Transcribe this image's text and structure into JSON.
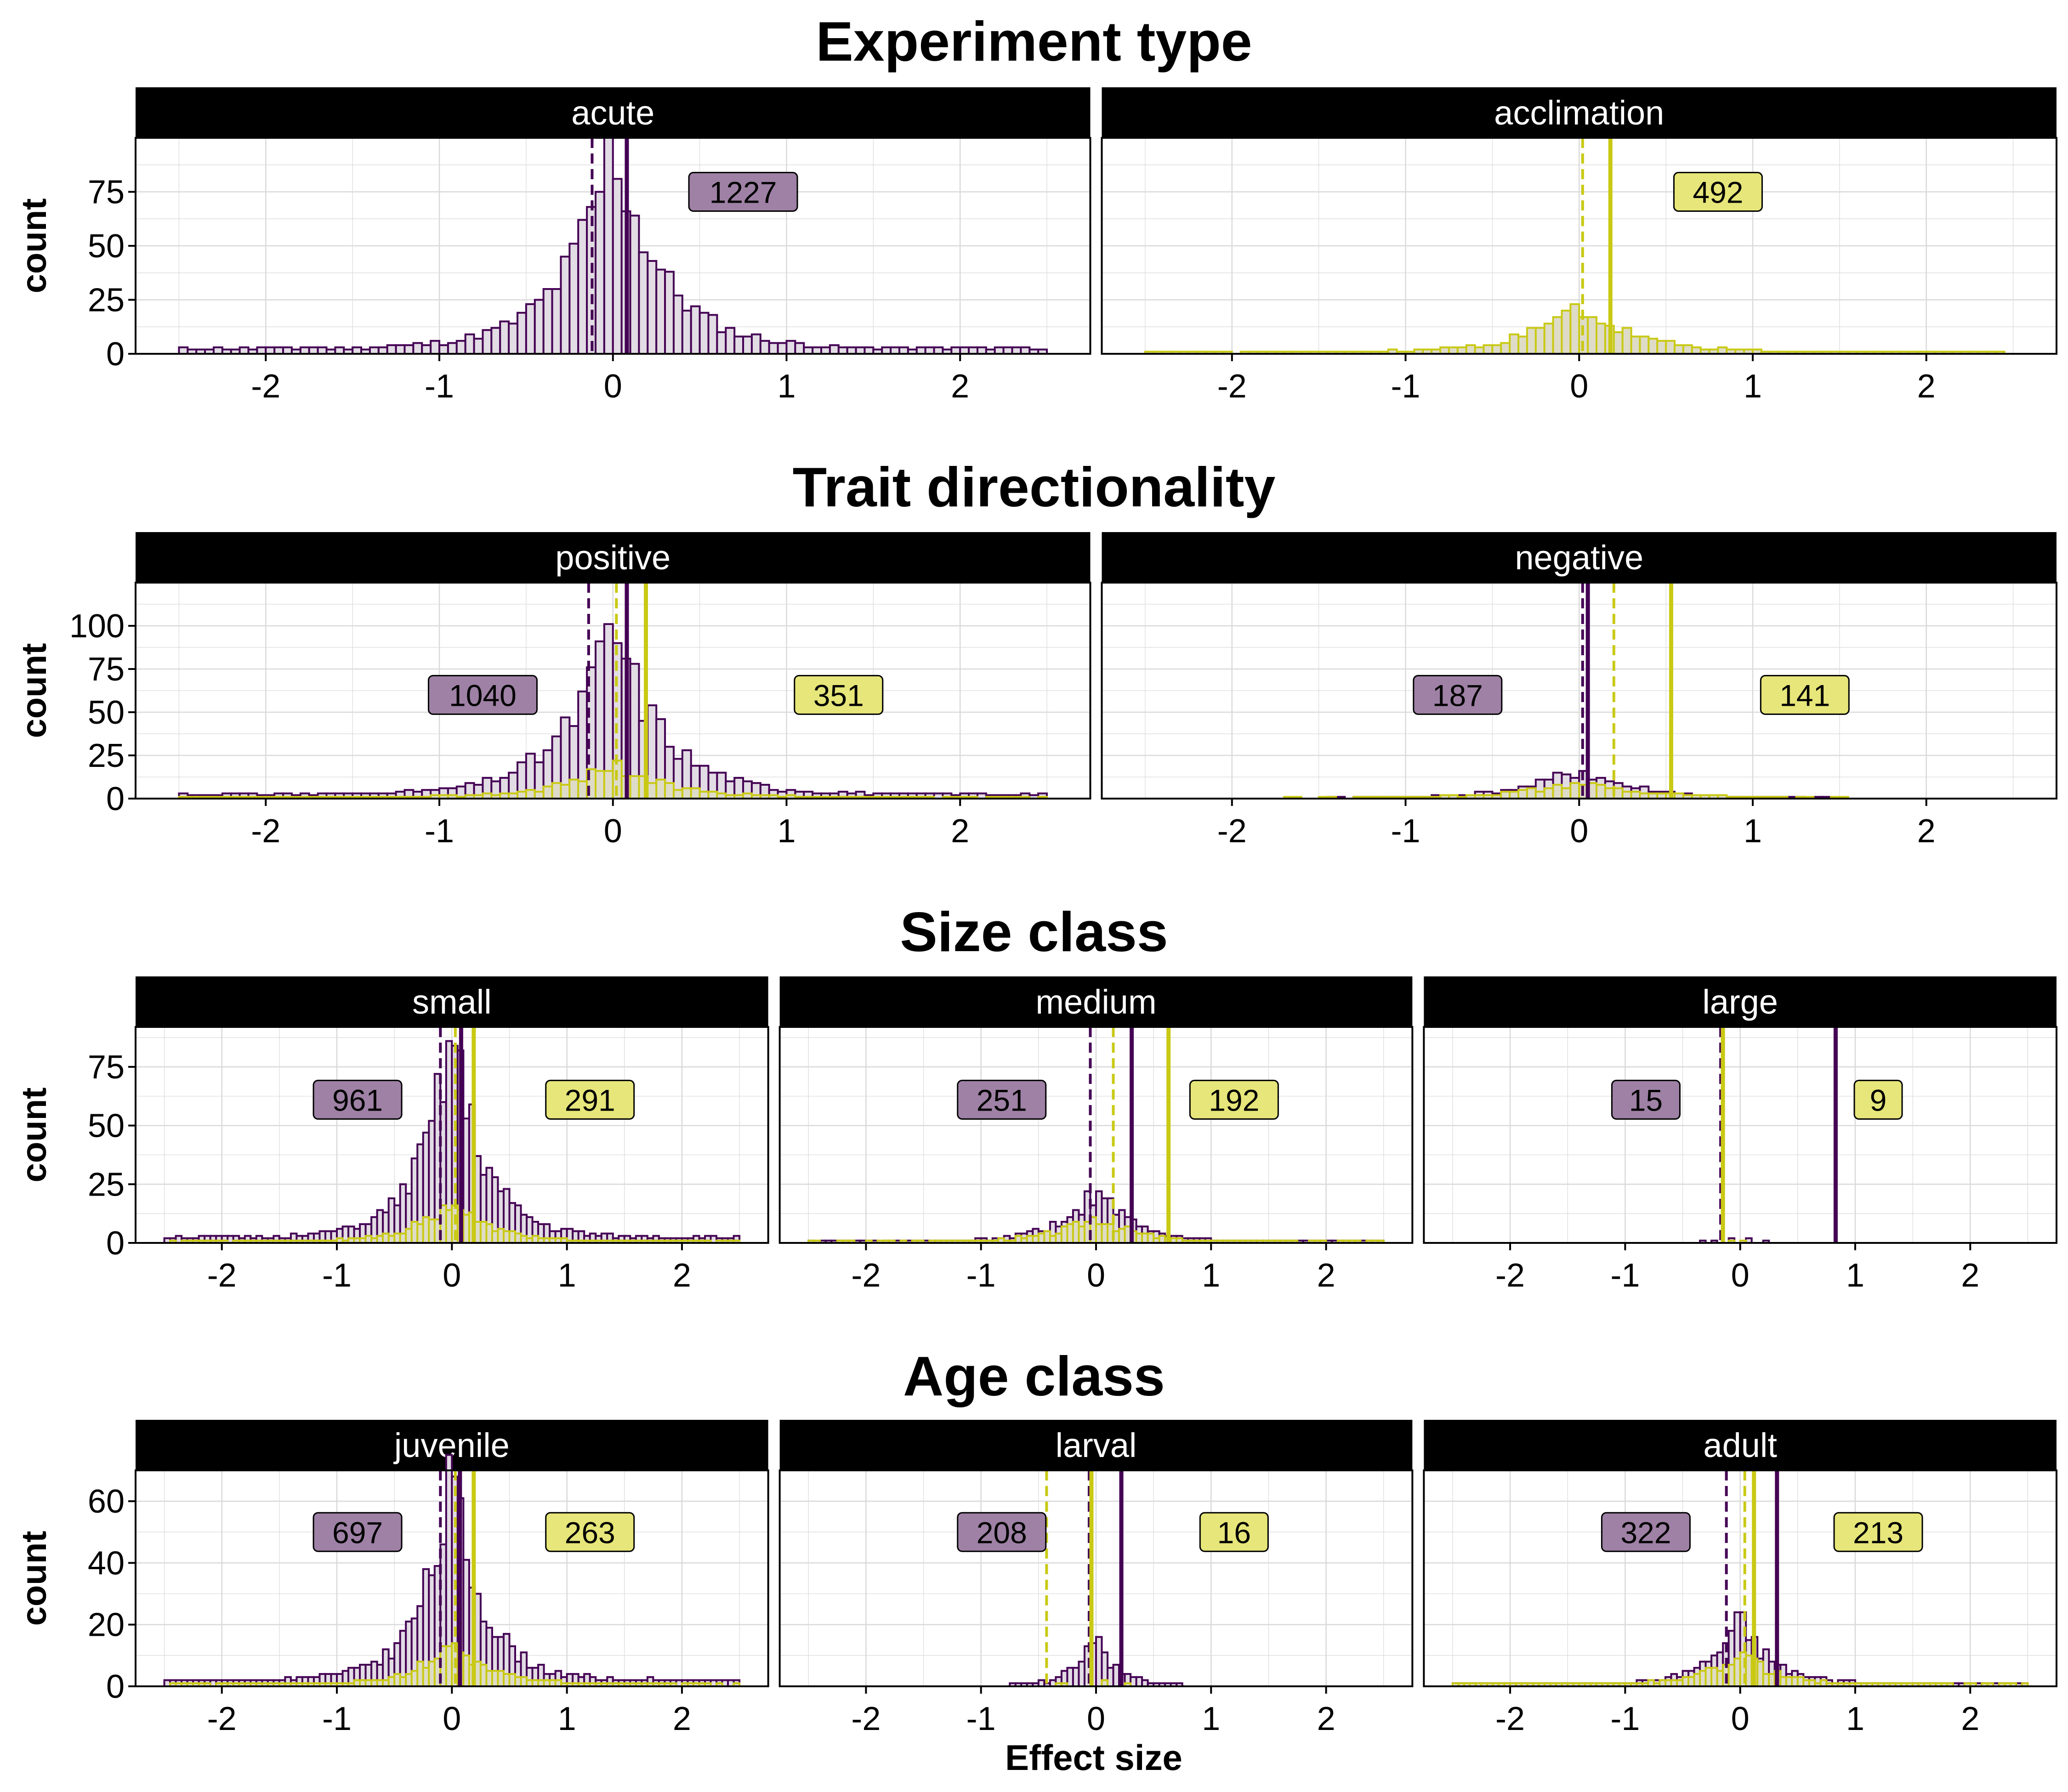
{
  "colors": {
    "purple": "#440154",
    "purple_fill": "#e2dce4",
    "yellow": "#c9c914",
    "yellow_fill": "#dedcc8",
    "purple_label": "#9e81a5",
    "yellow_label": "#e6e67a",
    "strip": "#000000",
    "grid": "#d9d9d9"
  },
  "x_axis": {
    "label": "Effect size",
    "ticks": [
      -2,
      -1,
      0,
      1,
      2
    ],
    "range": [
      -2.75,
      2.75
    ]
  },
  "y_axis_label": "count",
  "sections": [
    {
      "title": "Experiment type"
    },
    {
      "title": "Trait directionality"
    },
    {
      "title": "Size class"
    },
    {
      "title": "Age class"
    }
  ],
  "chart_data": [
    {
      "type": "histogram",
      "section": "Experiment type",
      "facet": "acute",
      "ylim": [
        0,
        100
      ],
      "yticks": [
        0,
        25,
        50,
        75
      ],
      "grid": true,
      "series": [
        {
          "name": "",
          "color": "purple",
          "n_label": "1227",
          "n_label_x": 0.75,
          "n_label_y": 75,
          "mean": 0.08,
          "median": -0.12,
          "seed": 11,
          "n_bins": 100,
          "peak": 96,
          "width": 0.45,
          "floor": 2.5,
          "noise": 0.45
        }
      ]
    },
    {
      "type": "histogram",
      "section": "Experiment type",
      "facet": "acclimation",
      "ylim": [
        0,
        100
      ],
      "yticks": [
        0,
        25,
        50,
        75
      ],
      "grid": true,
      "series": [
        {
          "name": "",
          "color": "yellow",
          "n_label": "492",
          "n_label_x": 0.8,
          "n_label_y": 75,
          "mean": 0.18,
          "median": 0.02,
          "seed": 23,
          "n_bins": 100,
          "peak": 22,
          "width": 0.5,
          "floor": 0.6,
          "noise": 0.5
        }
      ]
    },
    {
      "type": "histogram",
      "section": "Trait directionality",
      "facet": "positive",
      "ylim": [
        0,
        125
      ],
      "yticks": [
        0,
        25,
        50,
        75,
        100
      ],
      "grid": true,
      "series": [
        {
          "name": "",
          "color": "purple",
          "n_label": "1040",
          "n_label_x": -0.75,
          "n_label_y": 60,
          "mean": 0.08,
          "median": -0.14,
          "seed": 31,
          "n_bins": 100,
          "peak": 100,
          "width": 0.45,
          "floor": 2.5,
          "noise": 0.45
        },
        {
          "name": "",
          "color": "yellow",
          "n_label": "351",
          "n_label_x": 1.3,
          "n_label_y": 60,
          "mean": 0.19,
          "median": 0.02,
          "seed": 37,
          "n_bins": 100,
          "peak": 20,
          "width": 0.5,
          "floor": 0.6,
          "noise": 0.5
        }
      ]
    },
    {
      "type": "histogram",
      "section": "Trait directionality",
      "facet": "negative",
      "ylim": [
        0,
        125
      ],
      "yticks": [
        0,
        25,
        50,
        75,
        100
      ],
      "grid": true,
      "series": [
        {
          "name": "",
          "color": "purple",
          "n_label": "187",
          "n_label_x": -0.7,
          "n_label_y": 60,
          "mean": 0.05,
          "median": 0.02,
          "seed": 41,
          "n_bins": 100,
          "peak": 17,
          "width": 0.5,
          "floor": 0.3,
          "noise": 0.6
        },
        {
          "name": "",
          "color": "yellow",
          "n_label": "141",
          "n_label_x": 1.3,
          "n_label_y": 60,
          "mean": 0.53,
          "median": 0.2,
          "seed": 43,
          "n_bins": 100,
          "peak": 9,
          "width": 0.6,
          "floor": 0.3,
          "noise": 0.6
        }
      ]
    },
    {
      "type": "histogram",
      "section": "Size class",
      "facet": "small",
      "ylim": [
        0,
        92
      ],
      "yticks": [
        0,
        25,
        50,
        75
      ],
      "grid": true,
      "series": [
        {
          "name": "",
          "color": "purple",
          "n_label": "961",
          "n_label_x": -0.82,
          "n_label_y": 61,
          "mean": 0.08,
          "median": -0.1,
          "seed": 51,
          "n_bins": 100,
          "peak": 88,
          "width": 0.45,
          "floor": 2.5,
          "noise": 0.45
        },
        {
          "name": "",
          "color": "yellow",
          "n_label": "291",
          "n_label_x": 1.2,
          "n_label_y": 61,
          "mean": 0.19,
          "median": 0.03,
          "seed": 53,
          "n_bins": 100,
          "peak": 18,
          "width": 0.5,
          "floor": 0.6,
          "noise": 0.5
        }
      ]
    },
    {
      "type": "histogram",
      "section": "Size class",
      "facet": "medium",
      "ylim": [
        0,
        92
      ],
      "yticks": [
        0,
        25,
        50,
        75
      ],
      "grid": true,
      "series": [
        {
          "name": "",
          "color": "purple",
          "n_label": "251",
          "n_label_x": -0.82,
          "n_label_y": 61,
          "mean": 0.31,
          "median": -0.05,
          "seed": 61,
          "n_bins": 100,
          "peak": 22,
          "width": 0.5,
          "floor": 0.6,
          "noise": 0.55
        },
        {
          "name": "",
          "color": "yellow",
          "n_label": "192",
          "n_label_x": 1.2,
          "n_label_y": 61,
          "mean": 0.63,
          "median": 0.15,
          "seed": 67,
          "n_bins": 100,
          "peak": 11,
          "width": 0.55,
          "floor": 0.5,
          "noise": 0.55
        }
      ]
    },
    {
      "type": "histogram",
      "section": "Size class",
      "facet": "large",
      "ylim": [
        0,
        92
      ],
      "yticks": [
        0,
        25,
        50,
        75
      ],
      "grid": true,
      "series": [
        {
          "name": "",
          "color": "purple",
          "n_label": "15",
          "n_label_x": -0.82,
          "n_label_y": 61,
          "mean": 0.83,
          "median": -0.17,
          "seed": 71,
          "n_bins": 100,
          "peak": 2,
          "width": 0.7,
          "floor": 0,
          "noise": 0.9
        },
        {
          "name": "",
          "color": "yellow",
          "n_label": "9",
          "n_label_x": 1.2,
          "n_label_y": 61,
          "mean": -0.15,
          "median": -0.15,
          "seed": 73,
          "n_bins": 100,
          "peak": 1,
          "width": 0.7,
          "floor": 0,
          "noise": 0.9
        }
      ]
    },
    {
      "type": "histogram",
      "section": "Age class",
      "facet": "juvenile",
      "ylim": [
        0,
        70
      ],
      "yticks": [
        0,
        20,
        40,
        60
      ],
      "grid": true,
      "series": [
        {
          "name": "",
          "color": "purple",
          "n_label": "697",
          "n_label_x": -0.82,
          "n_label_y": 50,
          "mean": 0.07,
          "median": -0.1,
          "seed": 81,
          "n_bins": 100,
          "peak": 65,
          "width": 0.45,
          "floor": 2,
          "noise": 0.45
        },
        {
          "name": "",
          "color": "yellow",
          "n_label": "263",
          "n_label_x": 1.2,
          "n_label_y": 50,
          "mean": 0.19,
          "median": 0.03,
          "seed": 83,
          "n_bins": 100,
          "peak": 14,
          "width": 0.5,
          "floor": 0.6,
          "noise": 0.5
        }
      ]
    },
    {
      "type": "histogram",
      "section": "Age class",
      "facet": "larval",
      "ylim": [
        0,
        70
      ],
      "yticks": [
        0,
        20,
        40,
        60
      ],
      "grid": true,
      "series": [
        {
          "name": "",
          "color": "purple",
          "n_label": "208",
          "n_label_x": -0.82,
          "n_label_y": 50,
          "mean": 0.22,
          "median": -0.06,
          "seed": 91,
          "n_bins": 100,
          "peak": 16,
          "width": 0.3,
          "floor": 0.2,
          "noise": 0.55
        },
        {
          "name": "",
          "color": "yellow",
          "n_label": "16",
          "n_label_x": 1.2,
          "n_label_y": 50,
          "mean": -0.04,
          "median": -0.43,
          "seed": 93,
          "n_bins": 100,
          "peak": 2,
          "width": 0.4,
          "floor": 0,
          "noise": 0.8
        }
      ]
    },
    {
      "type": "histogram",
      "section": "Age class",
      "facet": "adult",
      "ylim": [
        0,
        70
      ],
      "yticks": [
        0,
        20,
        40,
        60
      ],
      "grid": true,
      "series": [
        {
          "name": "",
          "color": "purple",
          "n_label": "322",
          "n_label_x": -0.82,
          "n_label_y": 50,
          "mean": 0.32,
          "median": -0.12,
          "seed": 101,
          "n_bins": 100,
          "peak": 21,
          "width": 0.45,
          "floor": 0.8,
          "noise": 0.55
        },
        {
          "name": "",
          "color": "yellow",
          "n_label": "213",
          "n_label_x": 1.2,
          "n_label_y": 50,
          "mean": 0.12,
          "median": 0.04,
          "seed": 103,
          "n_bins": 100,
          "peak": 10,
          "width": 0.5,
          "floor": 0.6,
          "noise": 0.55
        }
      ]
    }
  ]
}
